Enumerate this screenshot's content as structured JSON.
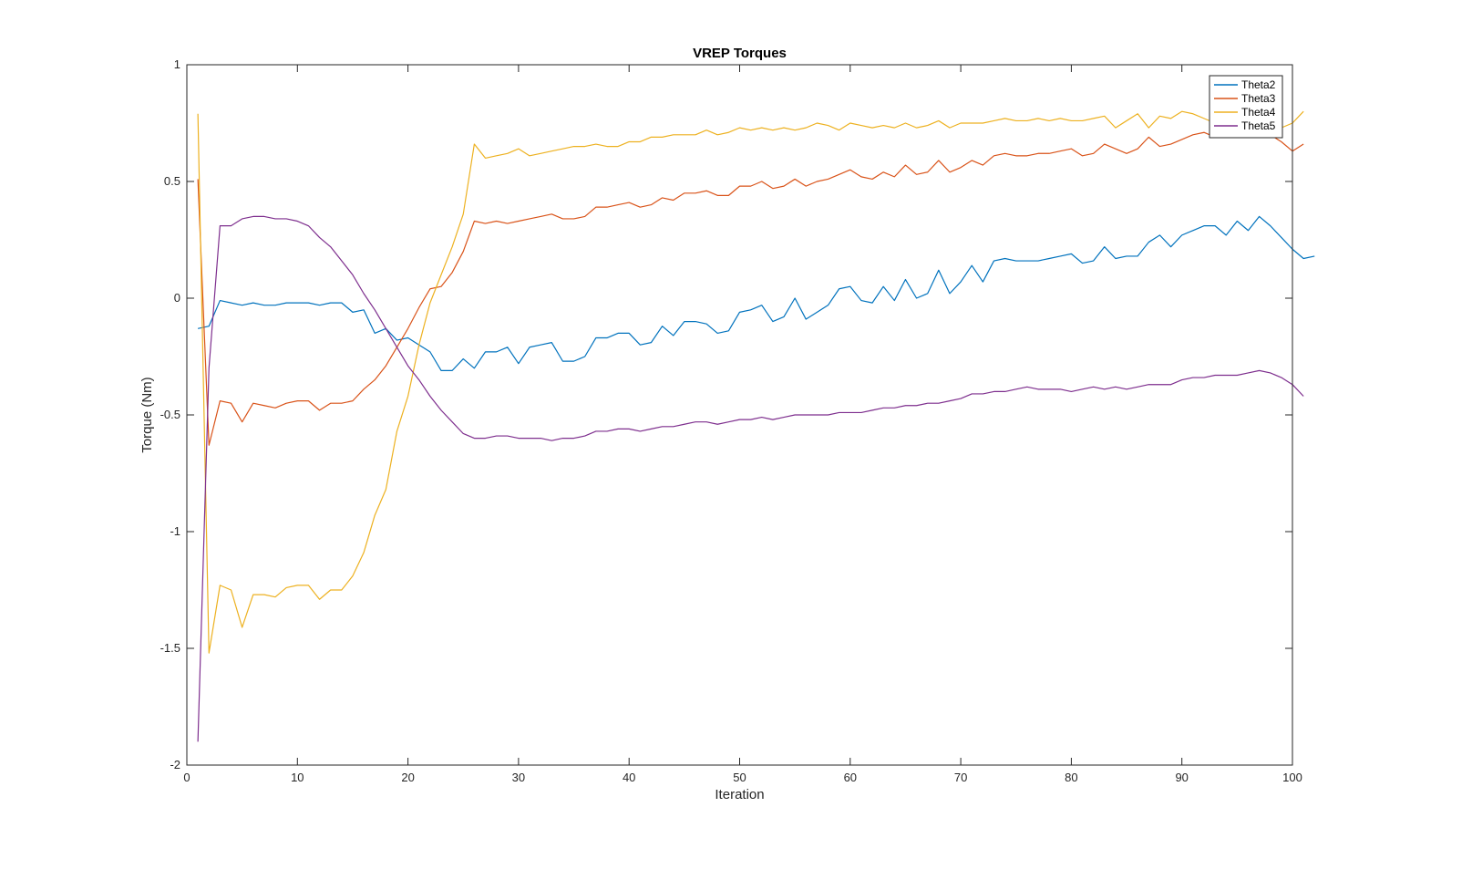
{
  "chart_data": {
    "type": "line",
    "title": "VREP Torques",
    "xlabel": "Iteration",
    "ylabel": "Torque (Nm)",
    "xlim": [
      0,
      100
    ],
    "ylim": [
      -2,
      1
    ],
    "xticks": [
      0,
      10,
      20,
      30,
      40,
      50,
      60,
      70,
      80,
      90,
      100
    ],
    "xtick_labels": [
      "0",
      "10",
      "20",
      "30",
      "40",
      "50",
      "60",
      "70",
      "80",
      "90",
      "100"
    ],
    "yticks": [
      -2,
      -1.5,
      -1,
      -0.5,
      0,
      0.5,
      1
    ],
    "ytick_labels": [
      "-2",
      "-1.5",
      "-1",
      "-0.5",
      "0",
      "0.5",
      "1"
    ],
    "grid": false,
    "legend_position": "top-right",
    "x_start": 1,
    "series": [
      {
        "name": "Theta2",
        "color": "#0072BD",
        "values": [
          -0.13,
          -0.12,
          -0.01,
          -0.02,
          -0.03,
          -0.02,
          -0.03,
          -0.03,
          -0.02,
          -0.02,
          -0.02,
          -0.03,
          -0.02,
          -0.02,
          -0.06,
          -0.05,
          -0.15,
          -0.13,
          -0.18,
          -0.17,
          -0.2,
          -0.23,
          -0.31,
          -0.31,
          -0.26,
          -0.3,
          -0.23,
          -0.23,
          -0.21,
          -0.28,
          -0.21,
          -0.2,
          -0.19,
          -0.27,
          -0.27,
          -0.25,
          -0.17,
          -0.17,
          -0.15,
          -0.15,
          -0.2,
          -0.19,
          -0.12,
          -0.16,
          -0.1,
          -0.1,
          -0.11,
          -0.15,
          -0.14,
          -0.06,
          -0.05,
          -0.03,
          -0.1,
          -0.08,
          0.0,
          -0.09,
          -0.06,
          -0.03,
          0.04,
          0.05,
          -0.01,
          -0.02,
          0.05,
          -0.01,
          0.08,
          0.0,
          0.02,
          0.12,
          0.02,
          0.07,
          0.14,
          0.07,
          0.16,
          0.17,
          0.16,
          0.16,
          0.16,
          0.17,
          0.18,
          0.19,
          0.15,
          0.16,
          0.22,
          0.17,
          0.18,
          0.18,
          0.24,
          0.27,
          0.22,
          0.27,
          0.29,
          0.31,
          0.31,
          0.27,
          0.33,
          0.29,
          0.35,
          0.31,
          0.26,
          0.21,
          0.17,
          0.18
        ]
      },
      {
        "name": "Theta3",
        "color": "#D95319",
        "values": [
          0.51,
          -0.63,
          -0.44,
          -0.45,
          -0.53,
          -0.45,
          -0.46,
          -0.47,
          -0.45,
          -0.44,
          -0.44,
          -0.48,
          -0.45,
          -0.45,
          -0.44,
          -0.39,
          -0.35,
          -0.29,
          -0.21,
          -0.13,
          -0.04,
          0.04,
          0.05,
          0.11,
          0.2,
          0.33,
          0.32,
          0.33,
          0.32,
          0.33,
          0.34,
          0.35,
          0.36,
          0.34,
          0.34,
          0.35,
          0.39,
          0.39,
          0.4,
          0.41,
          0.39,
          0.4,
          0.43,
          0.42,
          0.45,
          0.45,
          0.46,
          0.44,
          0.44,
          0.48,
          0.48,
          0.5,
          0.47,
          0.48,
          0.51,
          0.48,
          0.5,
          0.51,
          0.53,
          0.55,
          0.52,
          0.51,
          0.54,
          0.52,
          0.57,
          0.53,
          0.54,
          0.59,
          0.54,
          0.56,
          0.59,
          0.57,
          0.61,
          0.62,
          0.61,
          0.61,
          0.62,
          0.62,
          0.63,
          0.64,
          0.61,
          0.62,
          0.66,
          0.64,
          0.62,
          0.64,
          0.69,
          0.65,
          0.66,
          0.68,
          0.7,
          0.71,
          0.69,
          0.69,
          0.72,
          0.7,
          0.7,
          0.7,
          0.67,
          0.63,
          0.66
        ]
      },
      {
        "name": "Theta4",
        "color": "#EDB120",
        "values": [
          0.79,
          -1.52,
          -1.23,
          -1.25,
          -1.41,
          -1.27,
          -1.27,
          -1.28,
          -1.24,
          -1.23,
          -1.23,
          -1.29,
          -1.25,
          -1.25,
          -1.19,
          -1.09,
          -0.93,
          -0.82,
          -0.57,
          -0.42,
          -0.2,
          -0.02,
          0.1,
          0.22,
          0.36,
          0.66,
          0.6,
          0.61,
          0.62,
          0.64,
          0.61,
          0.62,
          0.63,
          0.64,
          0.65,
          0.65,
          0.66,
          0.65,
          0.65,
          0.67,
          0.67,
          0.69,
          0.69,
          0.7,
          0.7,
          0.7,
          0.72,
          0.7,
          0.71,
          0.73,
          0.72,
          0.73,
          0.72,
          0.73,
          0.72,
          0.73,
          0.75,
          0.74,
          0.72,
          0.75,
          0.74,
          0.73,
          0.74,
          0.73,
          0.75,
          0.73,
          0.74,
          0.76,
          0.73,
          0.75,
          0.75,
          0.75,
          0.76,
          0.77,
          0.76,
          0.76,
          0.77,
          0.76,
          0.77,
          0.76,
          0.76,
          0.77,
          0.78,
          0.73,
          0.76,
          0.79,
          0.73,
          0.78,
          0.77,
          0.8,
          0.79,
          0.77,
          0.75,
          0.79,
          0.77,
          0.74,
          0.74,
          0.72,
          0.73,
          0.75,
          0.8
        ]
      },
      {
        "name": "Theta5",
        "color": "#7E2F8E",
        "values": [
          -1.9,
          -0.3,
          0.31,
          0.31,
          0.34,
          0.35,
          0.35,
          0.34,
          0.34,
          0.33,
          0.31,
          0.26,
          0.22,
          0.16,
          0.1,
          0.02,
          -0.05,
          -0.13,
          -0.21,
          -0.29,
          -0.35,
          -0.42,
          -0.48,
          -0.53,
          -0.58,
          -0.6,
          -0.6,
          -0.59,
          -0.59,
          -0.6,
          -0.6,
          -0.6,
          -0.61,
          -0.6,
          -0.6,
          -0.59,
          -0.57,
          -0.57,
          -0.56,
          -0.56,
          -0.57,
          -0.56,
          -0.55,
          -0.55,
          -0.54,
          -0.53,
          -0.53,
          -0.54,
          -0.53,
          -0.52,
          -0.52,
          -0.51,
          -0.52,
          -0.51,
          -0.5,
          -0.5,
          -0.5,
          -0.5,
          -0.49,
          -0.49,
          -0.49,
          -0.48,
          -0.47,
          -0.47,
          -0.46,
          -0.46,
          -0.45,
          -0.45,
          -0.44,
          -0.43,
          -0.41,
          -0.41,
          -0.4,
          -0.4,
          -0.39,
          -0.38,
          -0.39,
          -0.39,
          -0.39,
          -0.4,
          -0.39,
          -0.38,
          -0.39,
          -0.38,
          -0.39,
          -0.38,
          -0.37,
          -0.37,
          -0.37,
          -0.35,
          -0.34,
          -0.34,
          -0.33,
          -0.33,
          -0.33,
          -0.32,
          -0.31,
          -0.32,
          -0.34,
          -0.37,
          -0.42
        ]
      }
    ]
  }
}
